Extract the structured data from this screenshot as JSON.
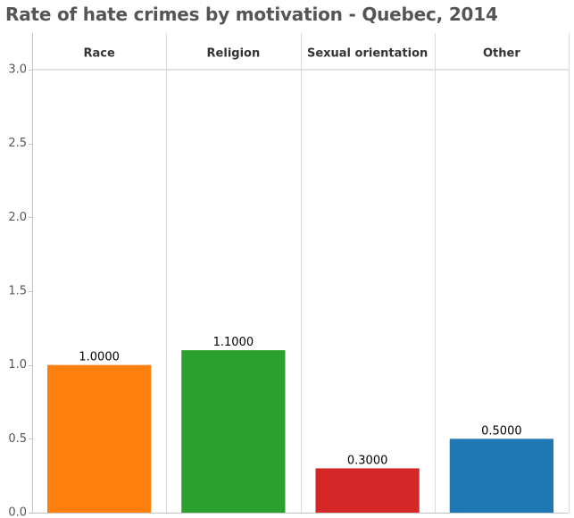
{
  "chart_data": {
    "type": "bar",
    "title": "Rate of hate crimes by motivation - Quebec, 2014",
    "categories": [
      "Race",
      "Religion",
      "Sexual orientation",
      "Other"
    ],
    "values": [
      1.0,
      1.1,
      0.3,
      0.5
    ],
    "value_labels": [
      "1.0000",
      "1.1000",
      "0.3000",
      "0.5000"
    ],
    "colors": [
      "#ff7f0e",
      "#2ca02c",
      "#d62728",
      "#1f77b4"
    ],
    "ylim": [
      0,
      3
    ],
    "yticks": [
      0,
      0.5,
      1,
      1.5,
      2,
      2.5,
      3
    ],
    "ytick_labels": [
      "0.0",
      "0.5",
      "1.0",
      "1.5",
      "2.0",
      "2.5",
      "3.0"
    ],
    "grid": false,
    "xlabel": "",
    "ylabel": ""
  }
}
